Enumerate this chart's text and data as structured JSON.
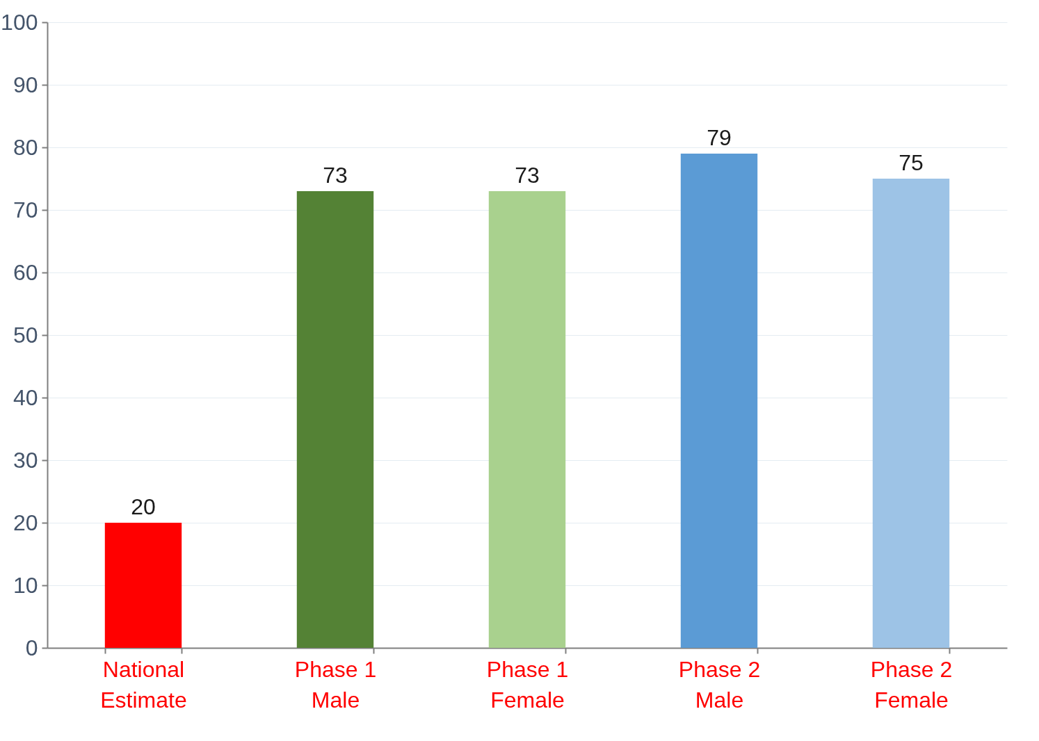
{
  "chart_data": {
    "type": "bar",
    "categories": [
      "National Estimate",
      "Phase 1 Male",
      "Phase 1 Female",
      "Phase 2 Male",
      "Phase 2 Female"
    ],
    "values": [
      20,
      73,
      73,
      79,
      75
    ],
    "colors": [
      "#ff0000",
      "#548235",
      "#a9d18e",
      "#5b9bd5",
      "#9dc3e6"
    ],
    "ylim": [
      0,
      100
    ],
    "yticks": [
      0,
      10,
      20,
      30,
      40,
      50,
      60,
      70,
      80,
      90,
      100
    ],
    "grid": "y",
    "data_labels": true,
    "legend": false
  }
}
